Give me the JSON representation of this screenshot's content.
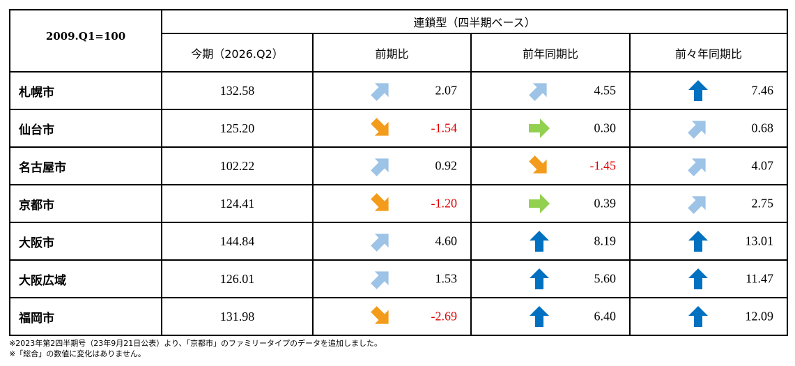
{
  "table": {
    "corner_label": "2009.Q1=100",
    "group_header": "連鎖型（四半期ベース）",
    "columns": [
      "今期（2026.Q2）",
      "前期比",
      "前年同期比",
      "前々年同期比"
    ],
    "rows": [
      {
        "city": "札幌市",
        "current": "132.58",
        "changes": [
          {
            "value": "2.07",
            "arrow": "up-right",
            "negative": false
          },
          {
            "value": "4.55",
            "arrow": "up-right",
            "negative": false
          },
          {
            "value": "7.46",
            "arrow": "up",
            "negative": false
          }
        ]
      },
      {
        "city": "仙台市",
        "current": "125.20",
        "changes": [
          {
            "value": "-1.54",
            "arrow": "down-right",
            "negative": true
          },
          {
            "value": "0.30",
            "arrow": "right",
            "negative": false
          },
          {
            "value": "0.68",
            "arrow": "up-right",
            "negative": false
          }
        ]
      },
      {
        "city": "名古屋市",
        "current": "102.22",
        "changes": [
          {
            "value": "0.92",
            "arrow": "up-right",
            "negative": false
          },
          {
            "value": "-1.45",
            "arrow": "down-right",
            "negative": true
          },
          {
            "value": "4.07",
            "arrow": "up-right",
            "negative": false
          }
        ]
      },
      {
        "city": "京都市",
        "current": "124.41",
        "changes": [
          {
            "value": "-1.20",
            "arrow": "down-right",
            "negative": true
          },
          {
            "value": "0.39",
            "arrow": "right",
            "negative": false
          },
          {
            "value": "2.75",
            "arrow": "up-right",
            "negative": false
          }
        ]
      },
      {
        "city": "大阪市",
        "current": "144.84",
        "changes": [
          {
            "value": "4.60",
            "arrow": "up-right",
            "negative": false
          },
          {
            "value": "8.19",
            "arrow": "up",
            "negative": false
          },
          {
            "value": "13.01",
            "arrow": "up",
            "negative": false
          }
        ]
      },
      {
        "city": "大阪広域",
        "current": "126.01",
        "changes": [
          {
            "value": "1.53",
            "arrow": "up-right",
            "negative": false
          },
          {
            "value": "5.60",
            "arrow": "up",
            "negative": false
          },
          {
            "value": "11.47",
            "arrow": "up",
            "negative": false
          }
        ]
      },
      {
        "city": "福岡市",
        "current": "131.98",
        "changes": [
          {
            "value": "-2.69",
            "arrow": "down-right",
            "negative": true
          },
          {
            "value": "6.40",
            "arrow": "up",
            "negative": false
          },
          {
            "value": "12.09",
            "arrow": "up",
            "negative": false
          }
        ]
      }
    ]
  },
  "notes": [
    "※2023年第2四半期号（23年9月21日公表）より、「京都市」のファミリータイプのデータを追加しました。",
    "※「総合」の数値に変化はありません。"
  ],
  "arrow_icons": {
    "up": "up-arrow-icon",
    "up-right": "up-right-arrow-icon",
    "right": "right-arrow-icon",
    "down-right": "down-right-arrow-icon"
  },
  "colors": {
    "up": "#0070c0",
    "up-right": "#9dc3e6",
    "right": "#92d050",
    "down-right": "#f39c1b",
    "negative": "#e00000"
  }
}
